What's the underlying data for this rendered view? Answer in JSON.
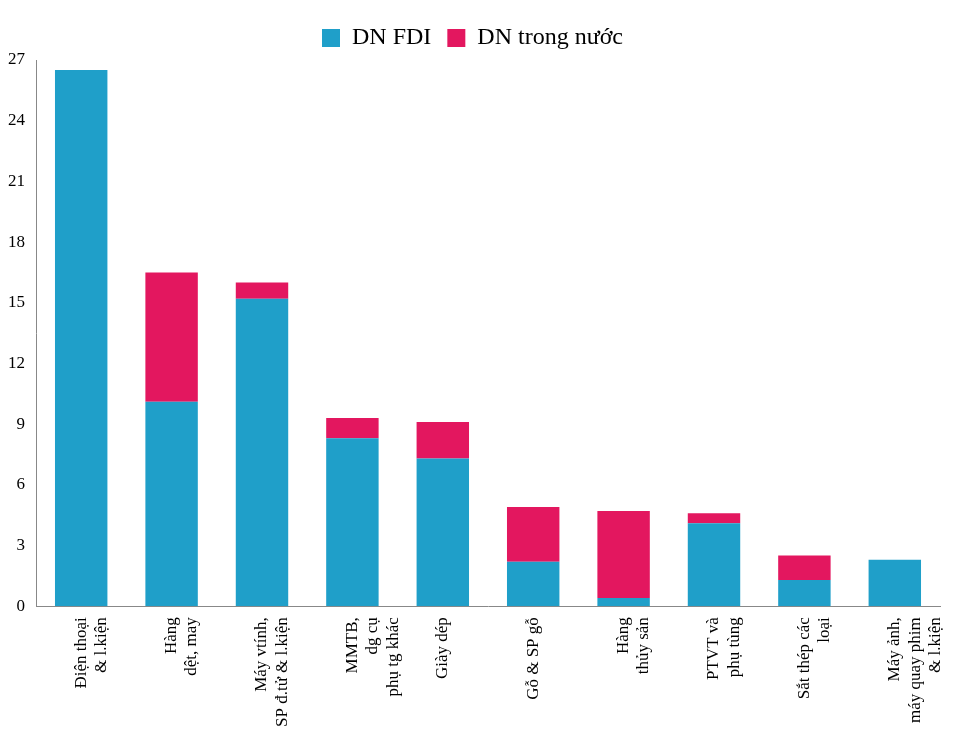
{
  "chart_data": {
    "type": "bar",
    "stacked": true,
    "categories": [
      [
        "Điện thoại",
        "& l.kiện"
      ],
      [
        "Hàng",
        "dệt, may"
      ],
      [
        "Máy vtính,",
        "SP đ.tử & l.kiện"
      ],
      [
        "MMTB,",
        "dg cụ",
        "phụ tg khác"
      ],
      [
        "Giày dép"
      ],
      [
        "Gỗ & SP gỗ"
      ],
      [
        "Hàng",
        "thủy sản"
      ],
      [
        "PTVT và",
        "phụ tùng"
      ],
      [
        "Sắt thép các",
        "loại"
      ],
      [
        "Máy ảnh,",
        "máy quay phim",
        "& l.kiện"
      ]
    ],
    "series": [
      {
        "name": "DN FDI",
        "color": "#1f9fc9",
        "values": [
          26.5,
          10.1,
          15.2,
          8.3,
          7.3,
          2.2,
          0.4,
          4.1,
          1.3,
          2.3
        ]
      },
      {
        "name": "DN trong nước",
        "color": "#e3175f",
        "values": [
          0,
          6.4,
          0.8,
          1.0,
          1.8,
          2.7,
          4.3,
          0.5,
          1.2,
          0
        ]
      }
    ],
    "ylim": [
      0,
      27
    ],
    "yticks": [
      0,
      3,
      6,
      9,
      12,
      15,
      18,
      21,
      24,
      27
    ],
    "grid": false,
    "legend": "top"
  }
}
